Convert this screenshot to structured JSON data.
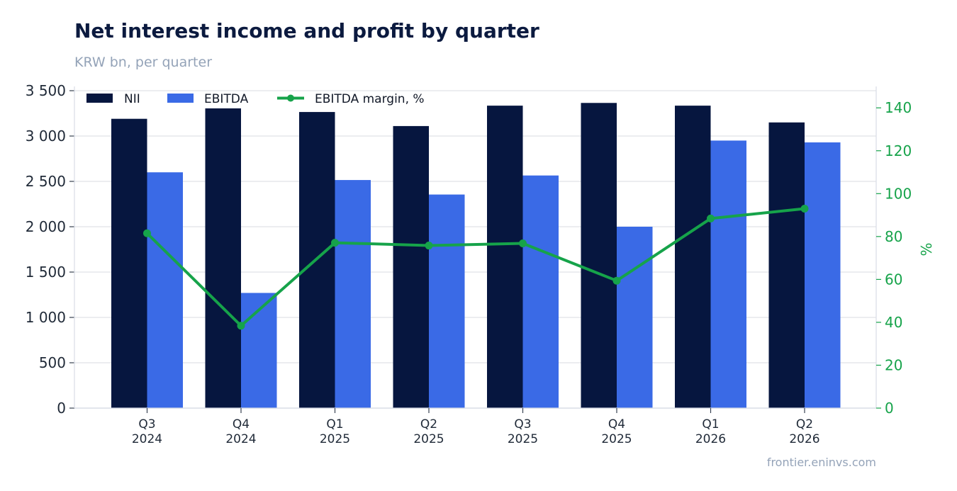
{
  "chart_data": {
    "type": "bar",
    "title": "Net interest income and profit by quarter",
    "subtitle": "KRW bn, per quarter",
    "categories": [
      [
        "Q3",
        "2024"
      ],
      [
        "Q4",
        "2024"
      ],
      [
        "Q1",
        "2025"
      ],
      [
        "Q2",
        "2025"
      ],
      [
        "Q3",
        "2025"
      ],
      [
        "Q4",
        "2025"
      ],
      [
        "Q1",
        "2026"
      ],
      [
        "Q2",
        "2026"
      ]
    ],
    "series": [
      {
        "name": "NII",
        "kind": "bar",
        "axis": "left",
        "color": "#06163f",
        "values": [
          3190,
          3305,
          3265,
          3110,
          3335,
          3365,
          3335,
          3150
        ]
      },
      {
        "name": "EBITDA",
        "kind": "bar",
        "axis": "left",
        "color": "#3a6ae6",
        "values": [
          2600,
          1270,
          2515,
          2355,
          2565,
          2000,
          2950,
          2930
        ]
      },
      {
        "name": "EBITDA margin, %",
        "kind": "line",
        "axis": "right",
        "color": "#16a34a",
        "values": [
          81.5,
          38.4,
          77.1,
          75.8,
          76.8,
          59.4,
          88.4,
          93.0
        ]
      }
    ],
    "y_left": {
      "min": 0,
      "max": 3500,
      "ticks": [
        0,
        500,
        1000,
        1500,
        2000,
        2500,
        3000,
        3500
      ],
      "tick_labels": [
        "0",
        "500",
        "1 000",
        "1 500",
        "2 000",
        "2 500",
        "3 000",
        "3 500"
      ]
    },
    "y_right": {
      "min": 0,
      "max": 148,
      "ticks": [
        0,
        20,
        40,
        60,
        80,
        100,
        120,
        140
      ],
      "tick_labels": [
        "0",
        "20",
        "40",
        "60",
        "80",
        "100",
        "120",
        "140"
      ],
      "label": "%"
    },
    "grid": true,
    "legend_position": "top-left",
    "source": "frontier.eninvs.com"
  }
}
